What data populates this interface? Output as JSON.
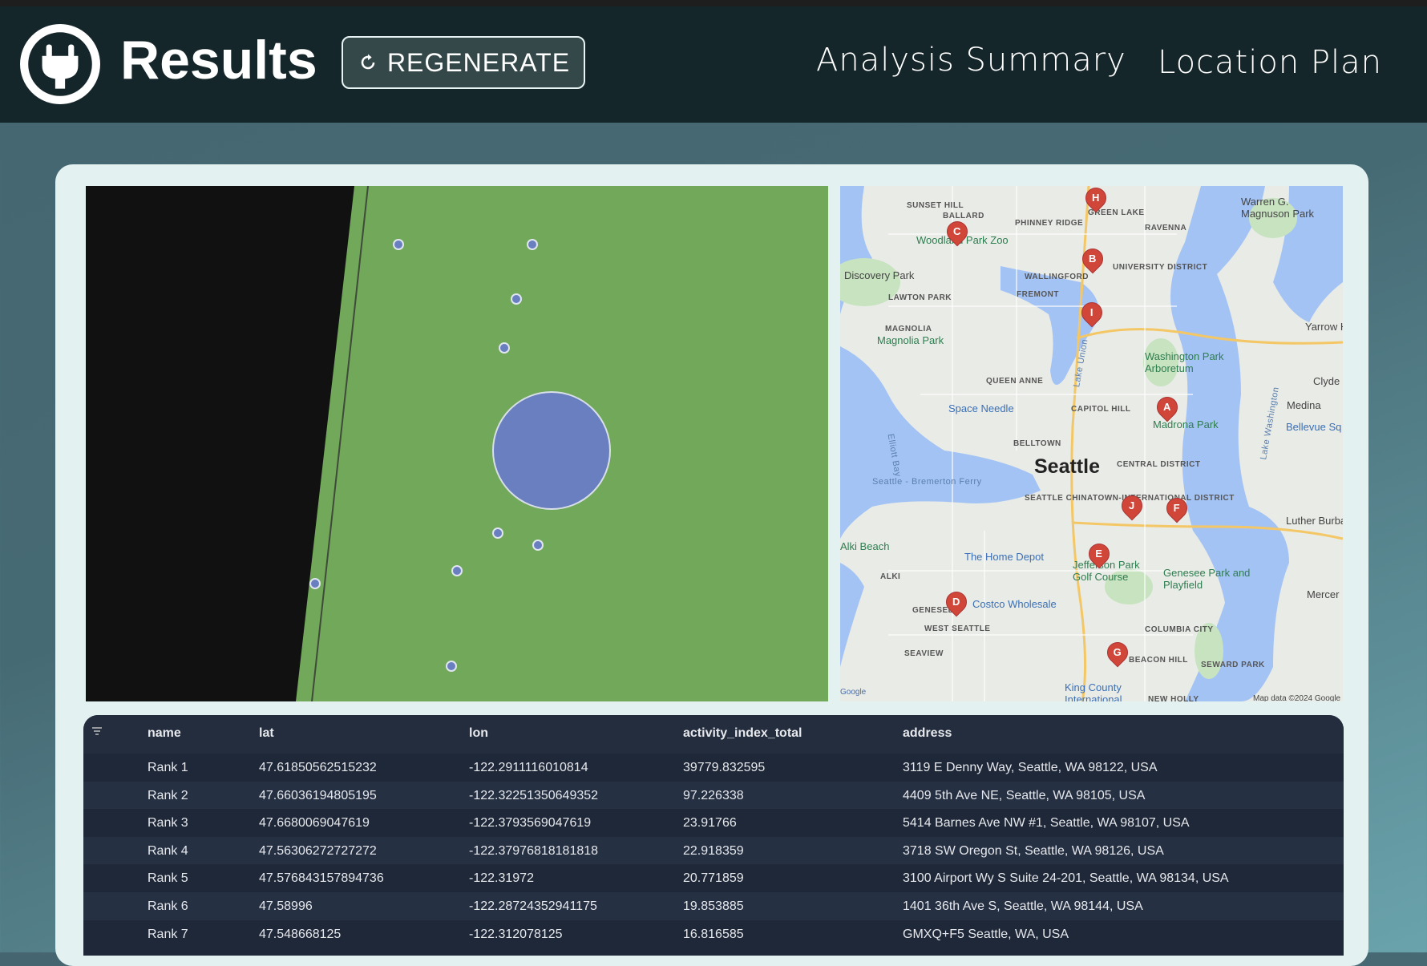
{
  "header": {
    "title": "Results",
    "regenerate_label": "REGENERATE",
    "nav": [
      "Analysis Summary",
      "Location Plan"
    ]
  },
  "colors": {
    "header_bg": "#15262a",
    "card_bg": "#e4f1f1",
    "field_green": "#72a85a",
    "circle": "#6a7fc0",
    "table_bg": "#1f2838",
    "marker": "#d0473a"
  },
  "icons": {
    "logo": "plug-in-circle-icon",
    "regenerate": "refresh-icon",
    "filter": "filter-icon"
  },
  "map": {
    "markers": [
      "A",
      "B",
      "C",
      "D",
      "E",
      "F",
      "G",
      "H",
      "I",
      "J"
    ],
    "labels": [
      "SUNSET HILL",
      "BALLARD",
      "PHINNEY RIDGE",
      "GREEN LAKE",
      "RAVENNA",
      "Warren G. Magnuson Park",
      "Woodland Park Zoo",
      "Discovery Park",
      "WALLINGFORD",
      "UNIVERSITY DISTRICT",
      "FREMONT",
      "LAWTON PARK",
      "MAGNOLIA",
      "Magnolia Park",
      "Yarrow Hunts Point",
      "Washington Park Arboretum",
      "QUEEN ANNE",
      "Lake Union",
      "Lake Washington",
      "Clyde",
      "Space Needle",
      "CAPITOL HILL",
      "Medina",
      "Madrona Park",
      "Bellevue Sq",
      "Elliott Bay",
      "BELLTOWN",
      "Seattle",
      "CENTRAL DISTRICT",
      "Seattle - Bremerton Ferry",
      "SEATTLE CHINATOWN-INTERNATIONAL DISTRICT",
      "Luther Burbank P",
      "Alki Beach",
      "The Home Depot",
      "Jefferson Park Golf Course",
      "Genesee Park and Playfield",
      "ALKI",
      "Mercer Is",
      "Costco Wholesale",
      "GENESEE",
      "WEST SEATTLE",
      "COLUMBIA CITY",
      "SEAVIEW",
      "BEACON HILL",
      "SEWARD PARK",
      "King County International",
      "NEW HOLLY",
      "Google",
      "Map data ©2024 Google"
    ]
  },
  "table": {
    "columns": [
      "name",
      "lat",
      "lon",
      "activity_index_total",
      "address"
    ],
    "rows": [
      [
        "Rank 1",
        "47.61850562515232",
        "-122.2911116010814",
        "39779.832595",
        "3119 E Denny Way, Seattle, WA 98122, USA"
      ],
      [
        "Rank 2",
        "47.66036194805195",
        "-122.32251350649352",
        "97.226338",
        "4409 5th Ave NE, Seattle, WA 98105, USA"
      ],
      [
        "Rank 3",
        "47.6680069047619",
        "-122.3793569047619",
        "23.91766",
        "5414 Barnes Ave NW #1, Seattle, WA 98107, USA"
      ],
      [
        "Rank 4",
        "47.56306272727272",
        "-122.37976818181818",
        "22.918359",
        "3718 SW Oregon St, Seattle, WA 98126, USA"
      ],
      [
        "Rank 5",
        "47.576843157894736",
        "-122.31972",
        "20.771859",
        "3100 Airport Wy S Suite 24-201, Seattle, WA 98134, USA"
      ],
      [
        "Rank 6",
        "47.58996",
        "-122.28724352941175",
        "19.853885",
        "1401 36th Ave S, Seattle, WA 98144, USA"
      ],
      [
        "Rank 7",
        "47.548668125",
        "-122.312078125",
        "16.816585",
        "GMXQ+F5 Seattle, WA, USA"
      ]
    ]
  }
}
